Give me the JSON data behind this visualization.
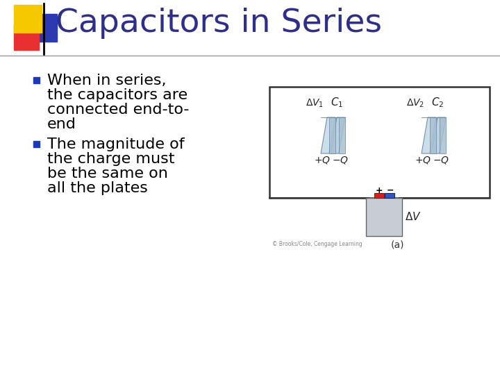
{
  "title": "Capacitors in Series",
  "title_color": "#2E2E8B",
  "title_fontsize": 34,
  "bg_color": "#FFFFFF",
  "bullet1_lines": [
    "When in series,",
    "the capacitors are",
    "connected end-to-",
    "end"
  ],
  "bullet2_lines": [
    "The magnitude of",
    "the charge must",
    "be the same on",
    "all the plates"
  ],
  "text_color": "#000000",
  "text_fontsize": 16,
  "accent_yellow": "#F5C800",
  "accent_red": "#E83030",
  "accent_blue": "#2B3AB0",
  "header_line_color": "#999999",
  "bullet_square_color": "#1A3ABA",
  "cap_plate_color1": "#B8D0E2",
  "cap_plate_color2": "#C8DCE8",
  "cap_top_color": "#D8EAF4",
  "wire_color": "#333333",
  "battery_body_color": "#C8CCD4",
  "battery_red_color": "#CC3333",
  "battery_blue_color": "#3333CC",
  "label_color": "#222222",
  "copyright_color": "#888888"
}
